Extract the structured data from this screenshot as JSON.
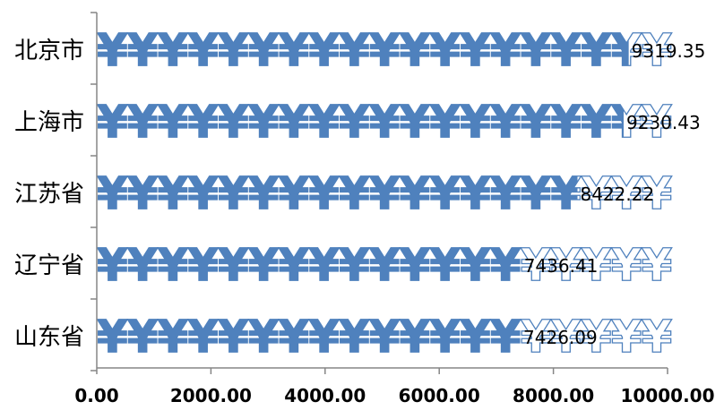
{
  "chart_data": {
    "type": "bar",
    "orientation": "horizontal",
    "categories": [
      "北京市",
      "上海市",
      "江苏省",
      "辽宁省",
      "山东省"
    ],
    "values": [
      9319.35,
      9230.43,
      8422.22,
      7436.41,
      7426.09
    ],
    "value_labels": [
      "9319.35",
      "9230.43",
      "8422.22",
      "7436.41",
      "7426.09"
    ],
    "xlim": [
      0,
      10000
    ],
    "xticks": [
      0,
      2000,
      4000,
      6000,
      8000,
      10000
    ],
    "xtick_labels": [
      "0.00",
      "2000.00",
      "4000.00",
      "6000.00",
      "8000.00",
      "10000.00"
    ],
    "symbol": "¥",
    "fill_color": "#4f81bd",
    "outline_color": "#4f81bd",
    "grid": false,
    "legend": "none"
  }
}
